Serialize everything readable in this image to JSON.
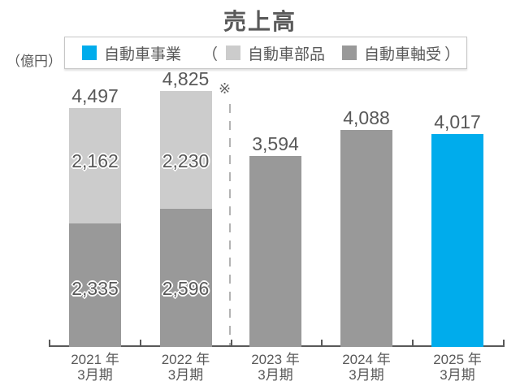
{
  "title": "売上高",
  "unit_label": "（億円）",
  "note_marker": "※",
  "colors": {
    "auto_business": "#00ACEC",
    "auto_parts": "#CCCCCC",
    "auto_bearings": "#999999",
    "text": "#595959",
    "axis": "#595959",
    "divider": "#B3B3B3"
  },
  "legend": {
    "open_paren": "（",
    "close_paren": "）",
    "items": [
      {
        "label": "自動車事業",
        "color": "#00ACEC"
      },
      {
        "label": "自動車部品",
        "color": "#CCCCCC"
      },
      {
        "label": "自動車軸受",
        "color": "#999999"
      }
    ]
  },
  "chart_data": {
    "type": "bar",
    "stacked": true,
    "title": "売上高",
    "ylabel": "（億円）",
    "unit": "億円",
    "legend_position": "top",
    "grid": false,
    "categories": [
      "2021年3月期",
      "2022年3月期",
      "2023年3月期",
      "2024年3月期",
      "2025年3月期"
    ],
    "series_names": [
      "自動車事業",
      "自動車部品",
      "自動車軸受"
    ],
    "bars": [
      {
        "category_line1": "2021 年",
        "category_line2": "3月期",
        "total": 4497,
        "total_label": "4,497",
        "segments": [
          {
            "series": "自動車軸受",
            "value": 2335,
            "label": "2,335",
            "color": "#999999"
          },
          {
            "series": "自動車部品",
            "value": 2162,
            "label": "2,162",
            "color": "#CCCCCC"
          }
        ]
      },
      {
        "category_line1": "2022 年",
        "category_line2": "3月期",
        "total": 4825,
        "total_label": "4,825",
        "segments": [
          {
            "series": "自動車軸受",
            "value": 2596,
            "label": "2,596",
            "color": "#999999"
          },
          {
            "series": "自動車部品",
            "value": 2230,
            "label": "2,230",
            "color": "#CCCCCC"
          }
        ]
      },
      {
        "category_line1": "2023 年",
        "category_line2": "3月期",
        "total": 3594,
        "total_label": "3,594",
        "segments": [
          {
            "series": "自動車軸受",
            "value": 3594,
            "color": "#999999"
          }
        ]
      },
      {
        "category_line1": "2024 年",
        "category_line2": "3月期",
        "total": 4088,
        "total_label": "4,088",
        "segments": [
          {
            "series": "自動車軸受",
            "value": 4088,
            "color": "#999999"
          }
        ]
      },
      {
        "category_line1": "2025 年",
        "category_line2": "3月期",
        "total": 4017,
        "total_label": "4,017",
        "segments": [
          {
            "series": "自動車事業",
            "value": 4017,
            "color": "#00ACEC"
          }
        ]
      }
    ]
  }
}
